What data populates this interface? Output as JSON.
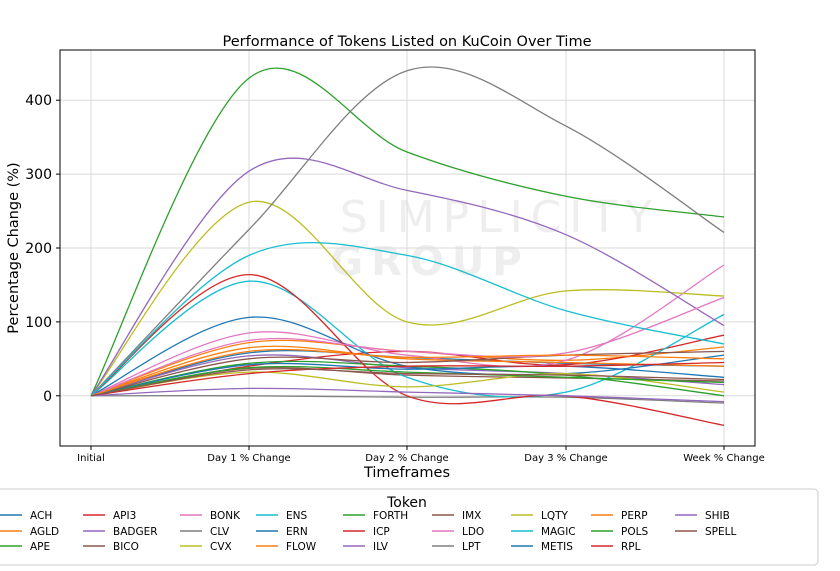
{
  "chart_data": {
    "type": "line",
    "title": "Performance of Tokens Listed on KuCoin Over Time",
    "xlabel": "Timeframes",
    "ylabel": "Percentage Change (%)",
    "categories": [
      "Initial",
      "Day 1 % Change",
      "Day 2 % Change",
      "Day 3 % Change",
      "Week % Change"
    ],
    "ylim": [
      -68,
      468
    ],
    "yticks": [
      0,
      100,
      200,
      300,
      400
    ],
    "grid": true,
    "legend_title": "Token",
    "legend_position": "bottom",
    "watermark": [
      "SIMPLICITY",
      "GROUP"
    ],
    "series": [
      {
        "name": "ACH",
        "color": "#1f77b4",
        "values": [
          0,
          58,
          52,
          44,
          40
        ]
      },
      {
        "name": "AGLD",
        "color": "#ff7f0e",
        "values": [
          0,
          72,
          60,
          48,
          66
        ]
      },
      {
        "name": "APE",
        "color": "#2ca02c",
        "values": [
          0,
          430,
          330,
          270,
          242
        ]
      },
      {
        "name": "API3",
        "color": "#d62728",
        "values": [
          0,
          40,
          60,
          42,
          82
        ]
      },
      {
        "name": "BADGER",
        "color": "#9467bd",
        "values": [
          0,
          54,
          38,
          30,
          15
        ]
      },
      {
        "name": "BICO",
        "color": "#8c564b",
        "values": [
          0,
          37,
          28,
          24,
          20
        ]
      },
      {
        "name": "BONK",
        "color": "#e377c2",
        "values": [
          0,
          85,
          55,
          48,
          177
        ]
      },
      {
        "name": "CLV",
        "color": "#7f7f7f",
        "values": [
          0,
          0,
          -2,
          -2,
          -10
        ]
      },
      {
        "name": "CVX",
        "color": "#bcbd22",
        "values": [
          0,
          262,
          100,
          142,
          135
        ]
      },
      {
        "name": "ENS",
        "color": "#17becf",
        "values": [
          0,
          155,
          25,
          5,
          110
        ]
      },
      {
        "name": "ERN",
        "color": "#1f77b4",
        "values": [
          0,
          106,
          40,
          30,
          55
        ]
      },
      {
        "name": "FLOW",
        "color": "#ff7f0e",
        "values": [
          0,
          65,
          50,
          45,
          40
        ]
      },
      {
        "name": "FORTH",
        "color": "#2ca02c",
        "values": [
          0,
          44,
          40,
          28,
          0
        ]
      },
      {
        "name": "ICP",
        "color": "#d62728",
        "values": [
          0,
          164,
          0,
          0,
          -40
        ]
      },
      {
        "name": "ILV",
        "color": "#9467bd",
        "values": [
          0,
          304,
          278,
          218,
          95
        ]
      },
      {
        "name": "IMX",
        "color": "#8c564b",
        "values": [
          0,
          50,
          45,
          55,
          60
        ]
      },
      {
        "name": "LDO",
        "color": "#e377c2",
        "values": [
          0,
          75,
          60,
          58,
          133
        ]
      },
      {
        "name": "LPT",
        "color": "#7f7f7f",
        "values": [
          0,
          225,
          440,
          365,
          221
        ]
      },
      {
        "name": "LQTY",
        "color": "#bcbd22",
        "values": [
          0,
          32,
          12,
          30,
          5
        ]
      },
      {
        "name": "MAGIC",
        "color": "#17becf",
        "values": [
          0,
          190,
          190,
          115,
          70
        ]
      },
      {
        "name": "METIS",
        "color": "#1f77b4",
        "values": [
          0,
          42,
          36,
          40,
          25
        ]
      },
      {
        "name": "PERP",
        "color": "#ff7f0e",
        "values": [
          0,
          60,
          52,
          55,
          50
        ]
      },
      {
        "name": "POLS",
        "color": "#2ca02c",
        "values": [
          0,
          38,
          32,
          25,
          18
        ]
      },
      {
        "name": "RPL",
        "color": "#d62728",
        "values": [
          0,
          30,
          40,
          40,
          45
        ]
      },
      {
        "name": "SHIB",
        "color": "#9467bd",
        "values": [
          0,
          10,
          5,
          0,
          -8
        ]
      },
      {
        "name": "SPELL",
        "color": "#8c564b",
        "values": [
          0,
          35,
          30,
          28,
          22
        ]
      }
    ]
  }
}
